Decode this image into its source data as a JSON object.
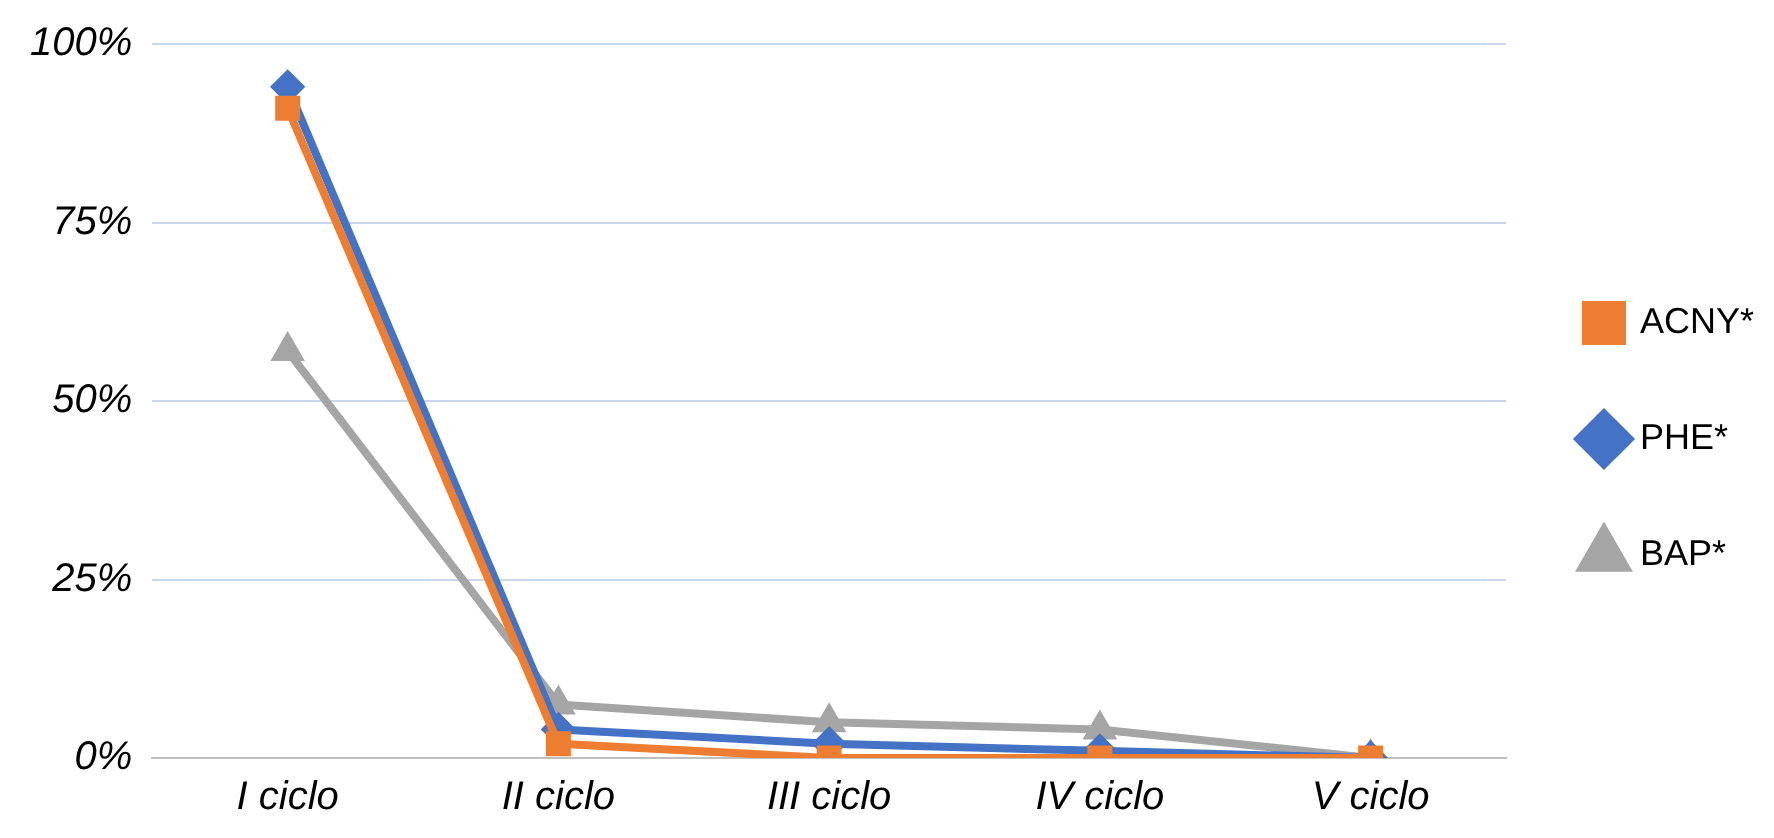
{
  "chart_data": {
    "type": "line",
    "categories": [
      "I ciclo",
      "II ciclo",
      "III ciclo",
      "IV ciclo",
      "V ciclo"
    ],
    "series": [
      {
        "name": "ACNY*",
        "color": "#ed7d31",
        "marker": "square",
        "values": [
          91,
          2,
          0,
          0,
          0
        ]
      },
      {
        "name": "PHE*",
        "color": "#4472c4",
        "marker": "diamond",
        "values": [
          94,
          4,
          2,
          1,
          0
        ]
      },
      {
        "name": "BAP*",
        "color": "#a5a5a5",
        "marker": "triangle",
        "values": [
          57,
          7.5,
          5,
          4,
          0
        ]
      }
    ],
    "ylim": [
      0,
      100
    ],
    "yticks": [
      {
        "value": 0,
        "label": "0%"
      },
      {
        "value": 25,
        "label": "25%"
      },
      {
        "value": 50,
        "label": "50%"
      },
      {
        "value": 75,
        "label": "75%"
      },
      {
        "value": 100,
        "label": "100%"
      }
    ],
    "grid": "y",
    "legend": "right",
    "line_style": "solid"
  }
}
